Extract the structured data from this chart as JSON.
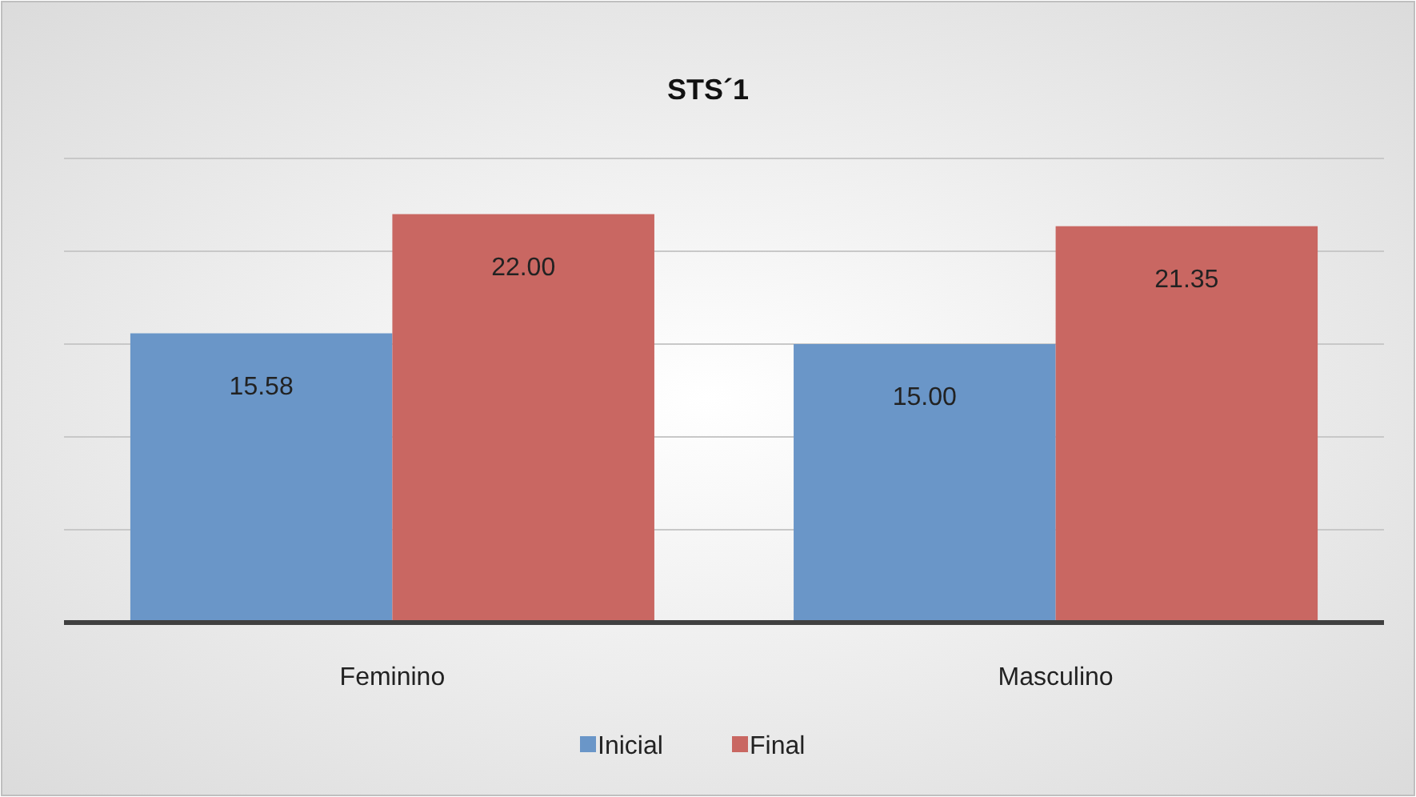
{
  "chart_data": {
    "type": "bar",
    "title": "STS´1",
    "categories": [
      "Feminino",
      "Masculino"
    ],
    "series": [
      {
        "name": "Inicial",
        "color": "#6a96c8",
        "values": [
          15.58,
          15.0
        ],
        "value_labels": [
          "15.58",
          "15.00"
        ]
      },
      {
        "name": "Final",
        "color": "#c96762",
        "values": [
          22.0,
          21.35
        ],
        "value_labels": [
          "22.00",
          "21.35"
        ]
      }
    ],
    "ylim": [
      0,
      25
    ],
    "yticks": [
      {
        "value": 0,
        "label": null
      },
      {
        "value": 5,
        "label": null
      },
      {
        "value": 10,
        "label": null
      },
      {
        "value": 15,
        "label": null
      },
      {
        "value": 20,
        "label": null
      },
      {
        "value": 25,
        "label": null
      }
    ],
    "grid": "y",
    "legend": "bottom"
  }
}
